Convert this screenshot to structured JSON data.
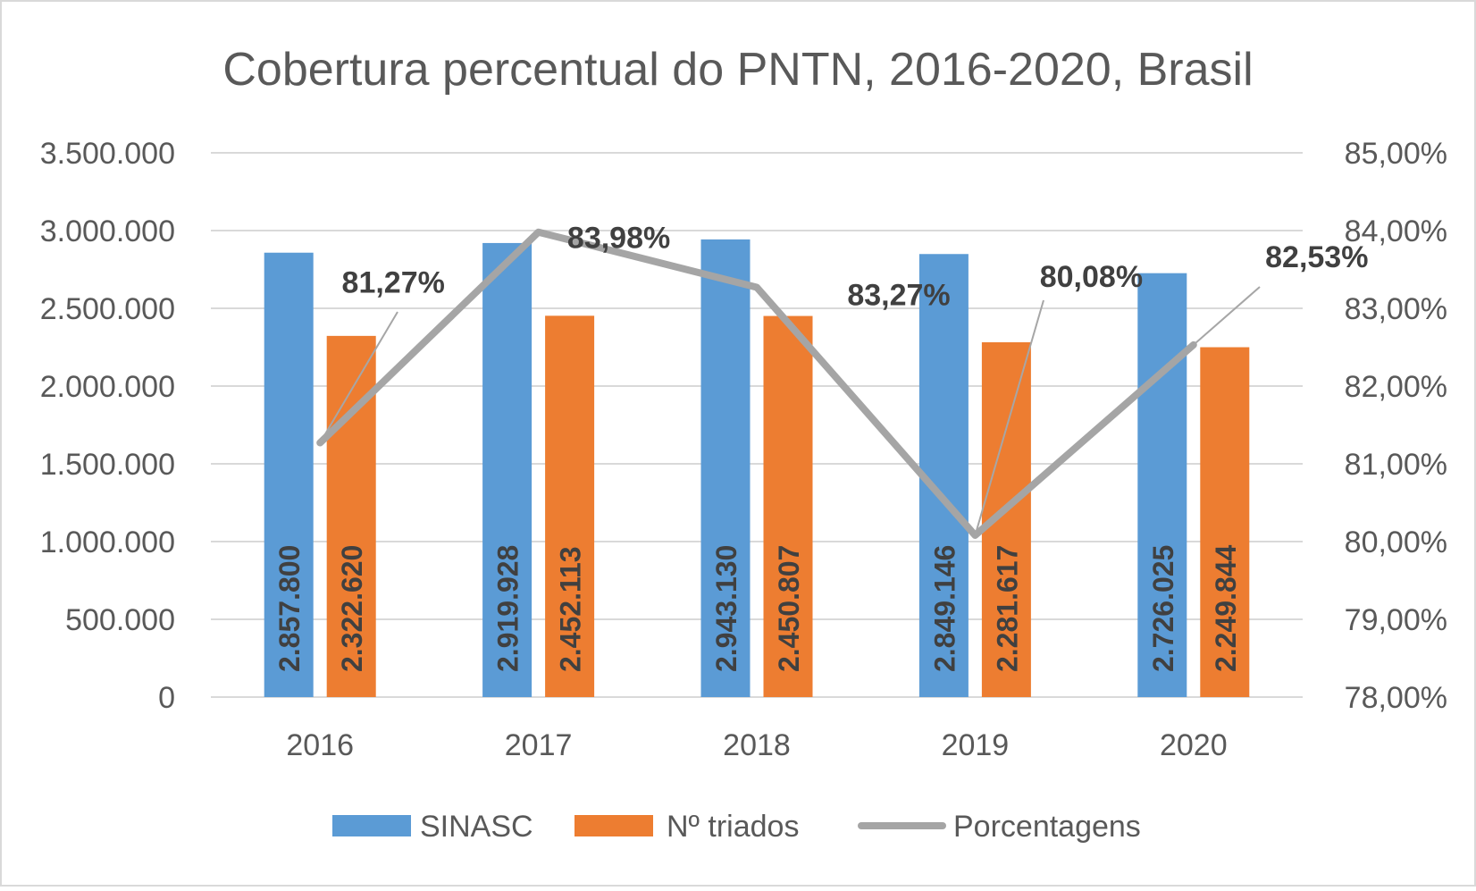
{
  "chart_data": {
    "type": "bar",
    "title": "Cobertura percentual do PNTN, 2016-2020, Brasil",
    "categories": [
      "2016",
      "2017",
      "2018",
      "2019",
      "2020"
    ],
    "series": [
      {
        "name": "SINASC",
        "kind": "bar",
        "axis": "left",
        "color": "#5B9BD5",
        "values": [
          2857800,
          2919928,
          2943130,
          2849146,
          2726025
        ],
        "labels": [
          "2.857.800",
          "2.919.928",
          "2.943.130",
          "2.849.146",
          "2.726.025"
        ]
      },
      {
        "name": "Nº triados",
        "kind": "bar",
        "axis": "left",
        "color": "#ED7D31",
        "values": [
          2322620,
          2452113,
          2450807,
          2281617,
          2249844
        ],
        "labels": [
          "2.322.620",
          "2.452.113",
          "2.450.807",
          "2.281.617",
          "2.249.844"
        ]
      },
      {
        "name": "Porcentagens",
        "kind": "line",
        "axis": "right",
        "color": "#A5A5A5",
        "values": [
          81.27,
          83.98,
          83.27,
          80.08,
          82.53
        ],
        "labels": [
          "81,27%",
          "83,98%",
          "83,27%",
          "80,08%",
          "82,53%"
        ]
      }
    ],
    "left_axis": {
      "ylim": [
        0,
        3500000
      ],
      "ticks": [
        0,
        500000,
        1000000,
        1500000,
        2000000,
        2500000,
        3000000,
        3500000
      ],
      "tick_labels": [
        "0",
        "500.000",
        "1.000.000",
        "1.500.000",
        "2.000.000",
        "2.500.000",
        "3.000.000",
        "3.500.000"
      ]
    },
    "right_axis": {
      "ylim": [
        78,
        85
      ],
      "ticks": [
        78,
        79,
        80,
        81,
        82,
        83,
        84,
        85
      ],
      "tick_labels": [
        "78,00%",
        "79,00%",
        "80,00%",
        "81,00%",
        "82,00%",
        "83,00%",
        "84,00%",
        "85,00%"
      ]
    },
    "legend_position": "bottom",
    "grid": true,
    "colors": {
      "grid": "#D9D9D9",
      "text": "#595959",
      "title": "#595959",
      "data_label": "#404040",
      "leader_line": "#A6A6A6",
      "border": "#D9D9D9"
    }
  }
}
